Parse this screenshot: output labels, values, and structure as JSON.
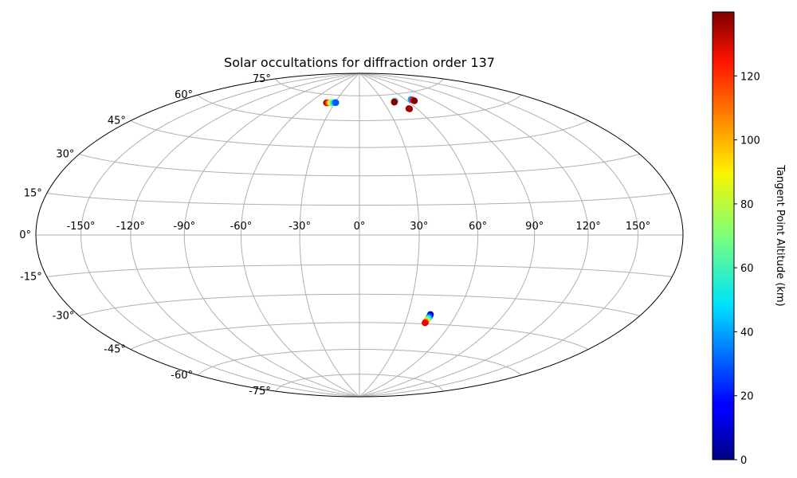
{
  "chart_data": {
    "type": "scatter",
    "projection": "hammer",
    "title": "Solar occultations for diffraction order 137",
    "longitude_ticks": [
      "-150°",
      "-120°",
      "-90°",
      "-60°",
      "-30°",
      "0°",
      "30°",
      "60°",
      "90°",
      "120°",
      "150°"
    ],
    "latitude_ticks": [
      "75°",
      "60°",
      "45°",
      "30°",
      "15°",
      "0°",
      "-15°",
      "-30°",
      "-45°",
      "-60°",
      "-75°"
    ],
    "grid": true,
    "colorbar": {
      "label": "Tangent Point Altitude (km)",
      "colormap": "jet",
      "range": [
        0,
        140
      ],
      "ticks": [
        "0",
        "20",
        "40",
        "60",
        "80",
        "100",
        "120"
      ]
    },
    "series": [
      {
        "points": [
          {
            "lon": -40.0,
            "lat": 70.0,
            "alt": 140
          },
          {
            "lon": -39.0,
            "lat": 70.0,
            "alt": 130
          },
          {
            "lon": -38.0,
            "lat": 70.1,
            "alt": 120
          },
          {
            "lon": -37.0,
            "lat": 70.1,
            "alt": 110
          },
          {
            "lon": -36.0,
            "lat": 70.2,
            "alt": 100
          },
          {
            "lon": -35.0,
            "lat": 70.2,
            "alt": 90
          },
          {
            "lon": -34.0,
            "lat": 70.2,
            "alt": 80
          },
          {
            "lon": -33.0,
            "lat": 70.3,
            "alt": 70
          },
          {
            "lon": -32.0,
            "lat": 70.3,
            "alt": 60
          },
          {
            "lon": -31.0,
            "lat": 70.3,
            "alt": 50
          },
          {
            "lon": -30.0,
            "lat": 70.4,
            "alt": 40
          },
          {
            "lon": -29.0,
            "lat": 70.4,
            "alt": 30
          },
          {
            "lon": 45.0,
            "lat": 71.0,
            "alt": 30
          },
          {
            "lon": 44.5,
            "lat": 71.0,
            "alt": 60
          },
          {
            "lon": 43.5,
            "lat": 70.6,
            "alt": 110
          },
          {
            "lon": 43.0,
            "lat": 70.3,
            "alt": 140
          },
          {
            "lon": 52.0,
            "lat": 66.0,
            "alt": 140
          },
          {
            "lon": 52.5,
            "lat": 65.8,
            "alt": 135
          },
          {
            "lon": 67.0,
            "lat": 71.0,
            "alt": 40
          },
          {
            "lon": 68.0,
            "lat": 70.5,
            "alt": 120
          },
          {
            "lon": 68.5,
            "lat": 70.0,
            "alt": 140
          },
          {
            "lon": 44.0,
            "lat": -40.0,
            "alt": 5
          },
          {
            "lon": 44.0,
            "lat": -40.6,
            "alt": 15
          },
          {
            "lon": 43.9,
            "lat": -41.1,
            "alt": 25
          },
          {
            "lon": 43.8,
            "lat": -41.6,
            "alt": 35
          },
          {
            "lon": 43.7,
            "lat": -42.0,
            "alt": 45
          },
          {
            "lon": 43.6,
            "lat": -42.4,
            "alt": 55
          },
          {
            "lon": 43.5,
            "lat": -42.8,
            "alt": 65
          },
          {
            "lon": 43.4,
            "lat": -43.2,
            "alt": 75
          },
          {
            "lon": 43.3,
            "lat": -43.6,
            "alt": 90
          },
          {
            "lon": 43.2,
            "lat": -43.9,
            "alt": 100
          },
          {
            "lon": 43.1,
            "lat": -44.2,
            "alt": 110
          },
          {
            "lon": 43.0,
            "lat": -44.5,
            "alt": 125
          }
        ]
      }
    ]
  }
}
